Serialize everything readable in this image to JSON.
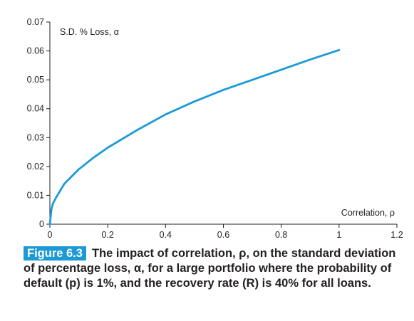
{
  "chart_data": {
    "type": "line",
    "y_axis_title": "S.D. % Loss, α",
    "x_axis_title": "Correlation, ρ",
    "xlim": [
      0,
      1.2
    ],
    "ylim": [
      0,
      0.07
    ],
    "x_ticks": [
      "0",
      "0.2",
      "0.4",
      "0.6",
      "0.8",
      "1",
      "1.2"
    ],
    "y_ticks": [
      "0",
      "0.01",
      "0.02",
      "0.03",
      "0.04",
      "0.05",
      "0.06",
      "0.07"
    ],
    "line_color": "#1b9ad6",
    "grid": false,
    "series": [
      {
        "x": [
          0,
          0.005,
          0.01,
          0.02,
          0.05,
          0.1,
          0.15,
          0.2,
          0.3,
          0.4,
          0.5,
          0.6,
          0.7,
          0.8,
          0.9,
          1.0
        ],
        "y": [
          0,
          0.005,
          0.007,
          0.009,
          0.014,
          0.019,
          0.023,
          0.0265,
          0.0325,
          0.038,
          0.0425,
          0.0465,
          0.05,
          0.0535,
          0.057,
          0.0603
        ]
      }
    ]
  },
  "caption": {
    "label": "Figure 6.3",
    "text": "The impact of correlation, ρ, on the standard deviation of percentage loss, α, for a large portfolio where the probability of default (p) is 1%, and the recovery rate (R) is 40% for all loans."
  }
}
